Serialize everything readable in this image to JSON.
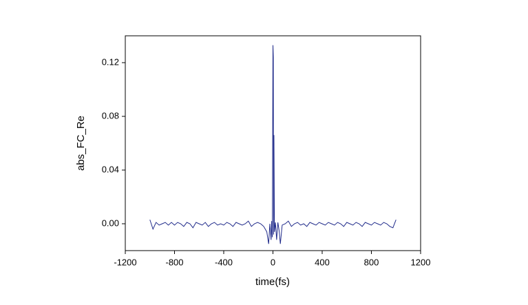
{
  "chart_data": {
    "type": "line",
    "xlabel": "time(fs)",
    "ylabel": "abs_FC_Re",
    "color": "#1f2a8a",
    "x": [
      -1000,
      -975,
      -950,
      -925,
      -900,
      -875,
      -850,
      -825,
      -800,
      -775,
      -750,
      -725,
      -700,
      -675,
      -650,
      -625,
      -600,
      -575,
      -550,
      -525,
      -500,
      -475,
      -450,
      -425,
      -400,
      -375,
      -350,
      -325,
      -300,
      -275,
      -250,
      -225,
      -200,
      -175,
      -150,
      -125,
      -100,
      -75,
      -50,
      -35,
      -25,
      -15,
      -10,
      -5,
      0,
      3,
      5,
      8,
      12,
      20,
      30,
      40,
      50,
      60,
      75,
      100,
      125,
      150,
      175,
      200,
      225,
      250,
      275,
      300,
      325,
      350,
      375,
      400,
      425,
      450,
      475,
      500,
      525,
      550,
      575,
      600,
      625,
      650,
      675,
      700,
      725,
      750,
      775,
      800,
      825,
      850,
      875,
      900,
      925,
      950,
      975,
      1000
    ],
    "values": [
      0.003,
      -0.004,
      0.001,
      -0.001,
      0.0,
      0.001,
      -0.001,
      0.001,
      -0.001,
      0.001,
      0.0,
      -0.002,
      0.001,
      0.0,
      -0.003,
      0.001,
      0.0,
      -0.001,
      0.001,
      -0.002,
      0.0,
      0.001,
      -0.001,
      0.0,
      -0.001,
      0.001,
      0.0,
      -0.002,
      0.001,
      0.0,
      -0.001,
      0.0,
      0.002,
      -0.002,
      0.0,
      0.001,
      0.0,
      -0.002,
      -0.006,
      -0.015,
      0.0,
      -0.012,
      0.002,
      -0.01,
      0.133,
      0.124,
      -0.008,
      0.066,
      -0.006,
      0.001,
      -0.012,
      0.001,
      -0.005,
      -0.015,
      -0.001,
      0.0,
      0.002,
      -0.002,
      0.0,
      0.001,
      -0.001,
      0.0,
      -0.002,
      0.001,
      0.0,
      -0.001,
      0.001,
      0.0,
      -0.001,
      0.001,
      0.0,
      -0.001,
      0.001,
      0.0,
      -0.002,
      0.001,
      0.0,
      -0.001,
      0.001,
      0.0,
      -0.002,
      0.001,
      0.0,
      -0.001,
      0.001,
      0.0,
      -0.001,
      0.001,
      0.0,
      -0.002,
      -0.003,
      0.003
    ],
    "xlim": [
      -1200,
      1200
    ],
    "xticks": [
      -1200,
      -800,
      -400,
      0,
      400,
      800,
      1200
    ],
    "ylim": [
      -0.02,
      0.14
    ],
    "yticks": [
      {
        "value": 0,
        "label": "0.00"
      },
      0.04,
      0.08,
      0.12
    ]
  }
}
